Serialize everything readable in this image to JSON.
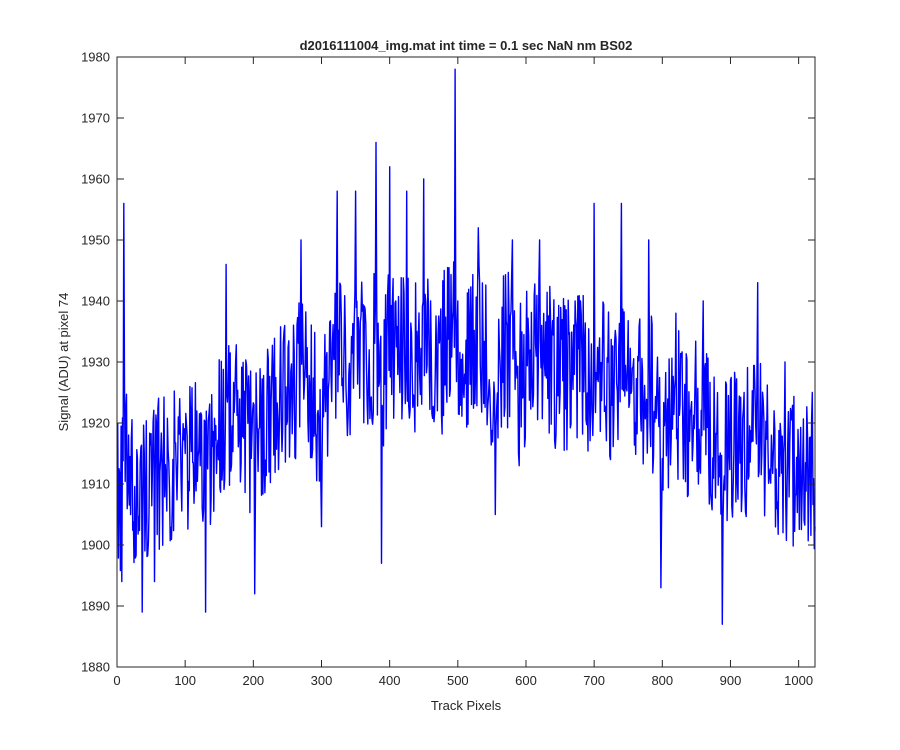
{
  "chart_data": {
    "type": "line",
    "title": "d2016111004_img.mat int time = 0.1 sec  NaN nm BS02",
    "xlabel": "Track Pixels",
    "ylabel": "Signal (ADU) at pixel 74",
    "xlim": [
      0,
      1024
    ],
    "ylim": [
      1880,
      1980
    ],
    "xticks": [
      0,
      100,
      200,
      300,
      400,
      500,
      600,
      700,
      800,
      900,
      1000
    ],
    "yticks": [
      1880,
      1890,
      1900,
      1910,
      1920,
      1930,
      1940,
      1950,
      1960,
      1970,
      1980
    ],
    "grid": false,
    "legend": "none",
    "series": [
      {
        "color": "#0000ff",
        "x": [
          1,
          7,
          10,
          20,
          37,
          40,
          55,
          63,
          100,
          122,
          130,
          160,
          202,
          220,
          245,
          270,
          300,
          323,
          340,
          350,
          370,
          380,
          388,
          400,
          409,
          425,
          440,
          450,
          460,
          470,
          480,
          496,
          500,
          510,
          530,
          555,
          560,
          580,
          590,
          600,
          620,
          650,
          680,
          695,
          700,
          720,
          740,
          760,
          780,
          798,
          820,
          840,
          860,
          888,
          900,
          920,
          940,
          960,
          980,
          1000,
          1020,
          1024
        ],
        "y": [
          1920,
          1894,
          1956,
          1905,
          1889,
          1915,
          1894,
          1912,
          1915,
          1913,
          1889,
          1946,
          1892,
          1925,
          1935,
          1950,
          1903,
          1958,
          1928,
          1958,
          1932,
          1966,
          1897,
          1962,
          1940,
          1958,
          1935,
          1960,
          1940,
          1922,
          1945,
          1978,
          1940,
          1928,
          1952,
          1905,
          1937,
          1950,
          1913,
          1932,
          1950,
          1925,
          1940,
          1924,
          1956,
          1930,
          1956,
          1920,
          1950,
          1893,
          1938,
          1917,
          1940,
          1887,
          1927,
          1925,
          1943,
          1918,
          1930,
          1915,
          1925,
          1903
        ]
      }
    ]
  }
}
